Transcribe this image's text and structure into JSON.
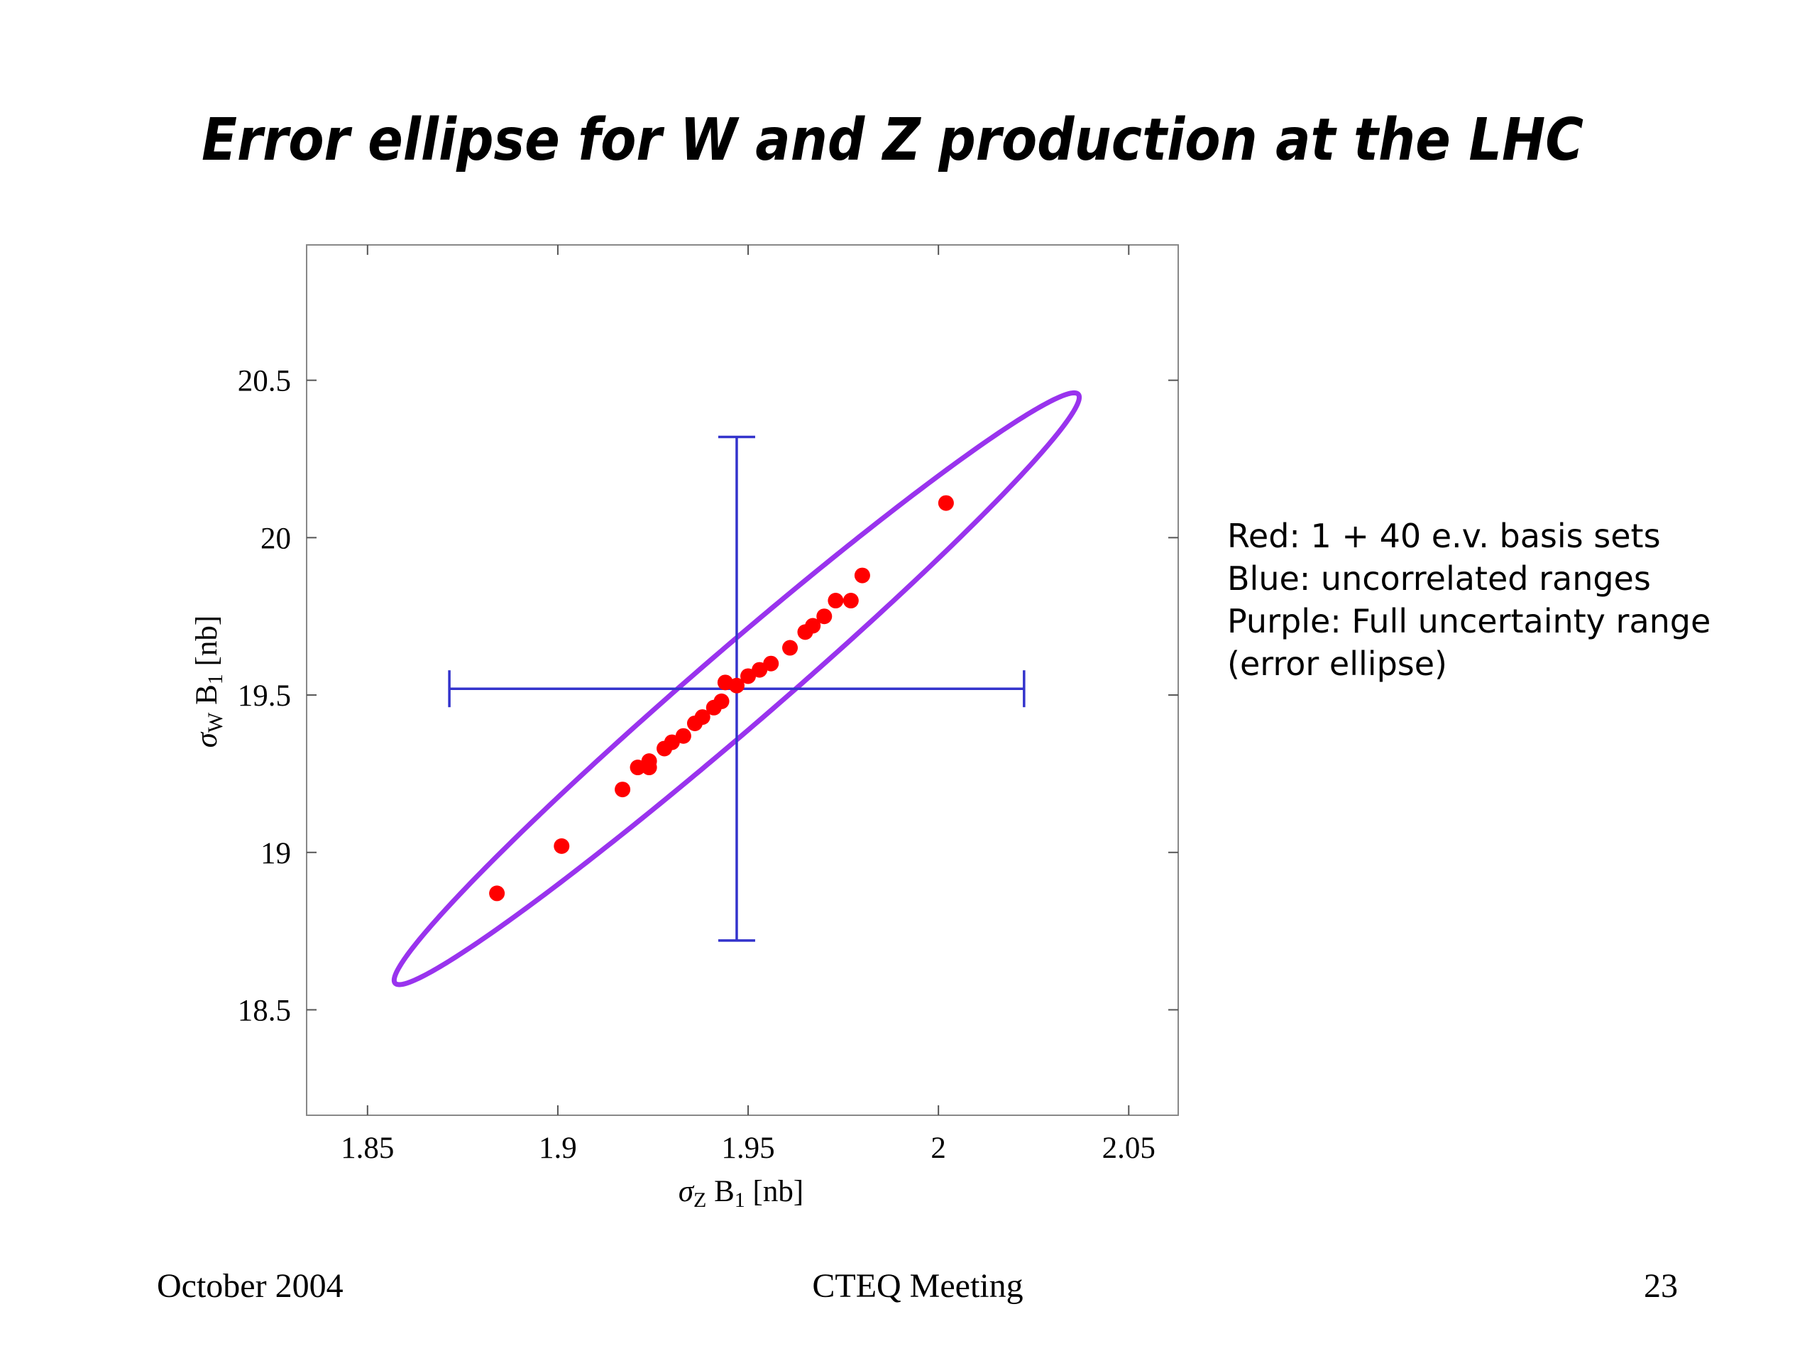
{
  "chart_data": {
    "type": "scatter",
    "title": "Error ellipse for W and Z production at the LHC",
    "xlabel": [
      "σ",
      "Z",
      " B",
      "1",
      " [nb]"
    ],
    "ylabel": [
      "σ",
      "W",
      " B",
      "1",
      " [nb]"
    ],
    "xlim": [
      1.834,
      2.063
    ],
    "ylim": [
      18.165,
      20.93
    ],
    "xticks": [
      1.85,
      1.9,
      1.95,
      2,
      2.05
    ],
    "yticks": [
      18.5,
      19,
      19.5,
      20,
      20.5
    ],
    "color": "#ff0000",
    "x": [
      1.884,
      1.901,
      1.917,
      1.921,
      1.924,
      1.924,
      1.928,
      1.93,
      1.933,
      1.936,
      1.938,
      1.941,
      1.943,
      1.944,
      1.947,
      1.95,
      1.953,
      1.956,
      1.961,
      1.965,
      1.967,
      1.97,
      1.973,
      1.977,
      1.98,
      2.002
    ],
    "values": [
      18.87,
      19.02,
      19.2,
      19.27,
      19.27,
      19.29,
      19.33,
      19.35,
      19.37,
      19.41,
      19.43,
      19.46,
      19.48,
      19.54,
      19.53,
      19.56,
      19.58,
      19.6,
      19.65,
      19.7,
      19.72,
      19.75,
      19.8,
      19.8,
      19.88,
      20.11
    ],
    "errorbar": {
      "x": 1.947,
      "y": 19.52,
      "xerr": 0.0755,
      "yerr": 0.8,
      "color": "#3333cc"
    },
    "ellipse": {
      "center": [
        1.947,
        19.52
      ],
      "sigma": [
        0.09,
        0.94
      ],
      "rho": 0.985,
      "color": "#9933ee"
    },
    "annotations": [
      "Red: 1 + 40 e.v. basis sets",
      "Blue: uncorrelated ranges",
      "Purple: Full uncertainty range",
      "(error ellipse)"
    ]
  },
  "footer": {
    "date": "October 2004",
    "event": "CTEQ Meeting",
    "page": "23"
  }
}
